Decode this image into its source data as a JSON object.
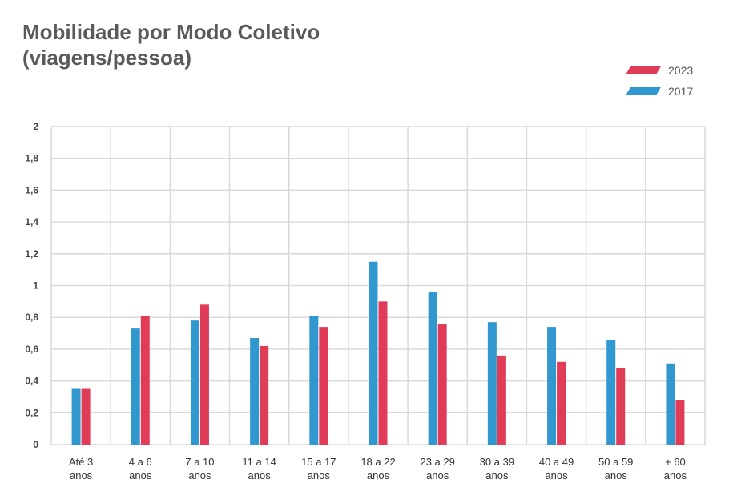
{
  "title_line1": "Mobilidade por Modo Coletivo",
  "title_line2": "(viagens/pessoa)",
  "colors": {
    "2023": "#e03c58",
    "2017": "#3198cf",
    "grid": "#d9d9d9"
  },
  "chart_data": {
    "type": "bar",
    "title": "Mobilidade por Modo Coletivo (viagens/pessoa)",
    "categories": [
      [
        "Até 3",
        "anos"
      ],
      [
        "4 a 6",
        "anos"
      ],
      [
        "7 a 10",
        "anos"
      ],
      [
        "11 a 14",
        "anos"
      ],
      [
        "15 a 17",
        "anos"
      ],
      [
        "18 a 22",
        "anos"
      ],
      [
        "23 a 29",
        "anos"
      ],
      [
        "30 a 39",
        "anos"
      ],
      [
        "40 a 49",
        "anos"
      ],
      [
        "50 a 59",
        "anos"
      ],
      [
        "+ 60",
        "anos"
      ]
    ],
    "series": [
      {
        "name": "2017",
        "values": [
          0.35,
          0.73,
          0.78,
          0.67,
          0.81,
          1.15,
          0.96,
          0.77,
          0.74,
          0.66,
          0.51
        ]
      },
      {
        "name": "2023",
        "values": [
          0.35,
          0.81,
          0.88,
          0.62,
          0.74,
          0.9,
          0.76,
          0.56,
          0.52,
          0.48,
          0.28
        ]
      }
    ],
    "ylim": [
      0,
      2
    ],
    "yticks": [
      "0",
      "0,2",
      "0,4",
      "0,6",
      "0,8",
      "1",
      "1,2",
      "1,4",
      "1,6",
      "1,8",
      "2"
    ],
    "legend": [
      "2023",
      "2017"
    ],
    "legend_position": "top-right",
    "grid": true
  }
}
